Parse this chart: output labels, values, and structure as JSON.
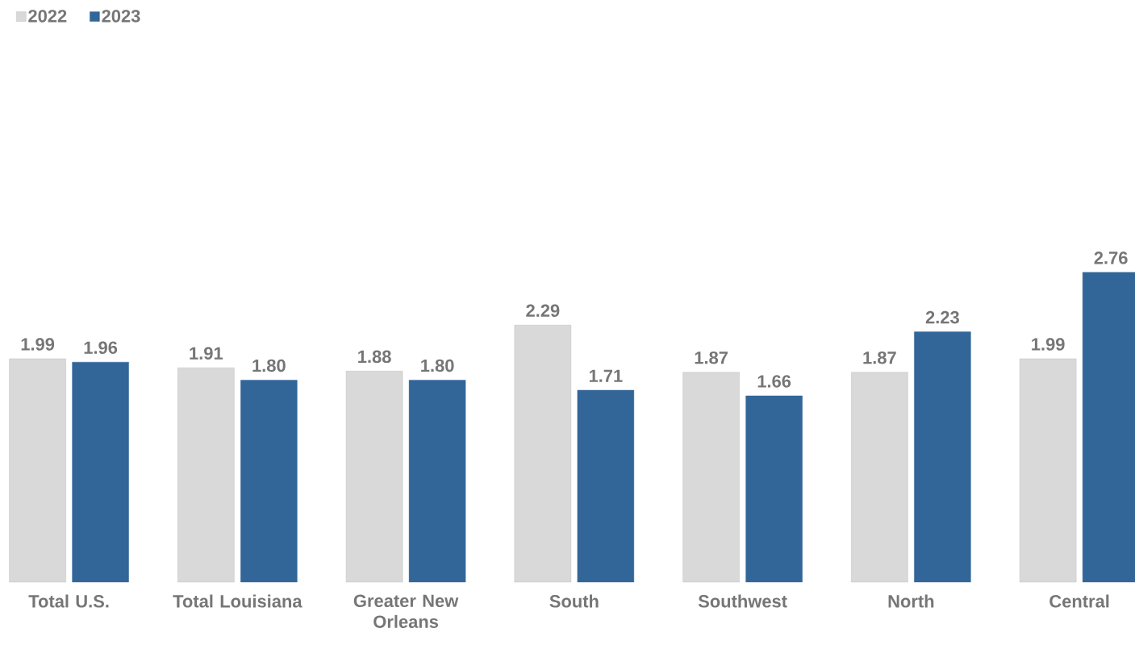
{
  "chart_data": {
    "type": "bar",
    "categories": [
      "Total U.S.",
      "Total Louisiana",
      "Greater New Orleans",
      "South",
      "Southwest",
      "North",
      "Central"
    ],
    "series": [
      {
        "name": "2022",
        "color": "#d9d9d9",
        "values": [
          1.99,
          1.91,
          1.88,
          2.29,
          1.87,
          1.87,
          1.99
        ],
        "value_labels": [
          "1.99",
          "1.91",
          "1.88",
          "2.29",
          "1.87",
          "1.87",
          "1.99"
        ]
      },
      {
        "name": "2023",
        "color": "#326699",
        "values": [
          1.96,
          1.8,
          1.8,
          1.71,
          1.66,
          2.23,
          2.76
        ],
        "value_labels": [
          "1.96",
          "1.80",
          "1.80",
          "1.71",
          "1.66",
          "2.23",
          "2.76"
        ]
      }
    ],
    "legend": "top left"
  }
}
